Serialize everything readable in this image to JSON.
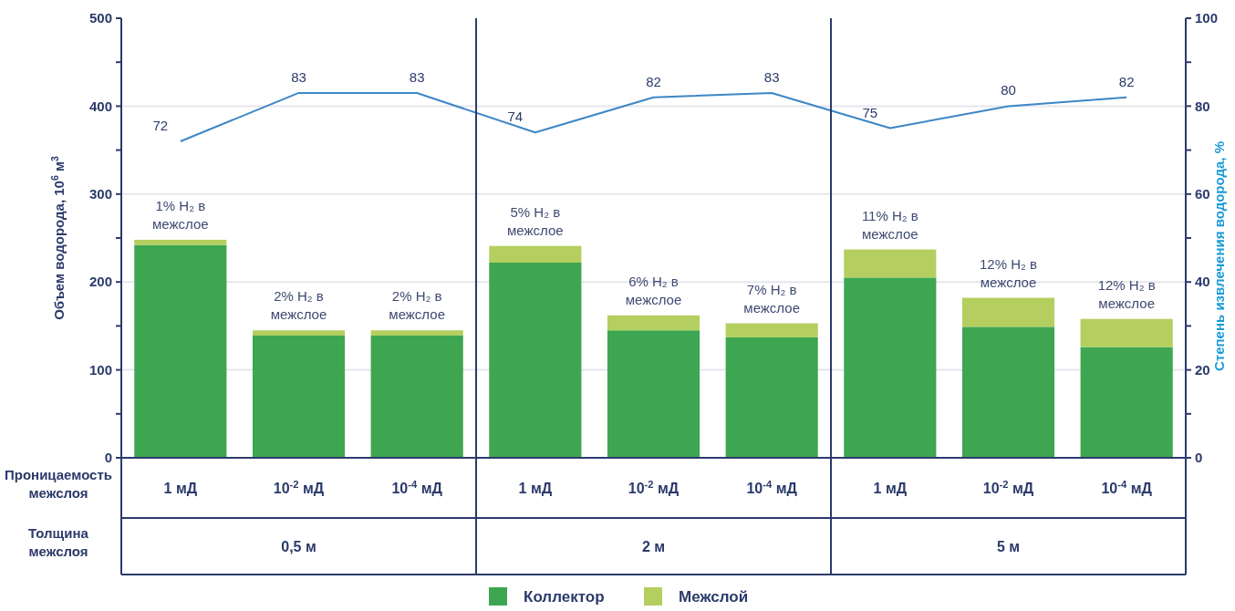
{
  "chart_data": {
    "type": "bar",
    "stacked": true,
    "categories": [
      "1 мД",
      "10$^{-2}$ мД",
      "10$^{-4}$ мД",
      "1 мД",
      "10$^{-2}$ мД",
      "10$^{-4}$ мД",
      "1 мД",
      "10$^{-2}$ мД",
      "10$^{-4}$ мД"
    ],
    "series": [
      {
        "name": "Коллектор",
        "color": "#3ea651",
        "values": [
          242,
          139,
          139,
          222,
          145,
          137,
          205,
          149,
          126
        ]
      },
      {
        "name": "Межслой",
        "color": "#b4cf5f",
        "values": [
          6,
          6,
          6,
          19,
          17,
          16,
          32,
          33,
          32
        ]
      },
      {
        "type": "line",
        "axis": "y2",
        "color": "#3d86c6",
        "data_labels": true,
        "values": [
          72,
          83,
          83,
          74,
          82,
          83,
          75,
          80,
          82
        ]
      }
    ],
    "ylabel": "Объем водорода, 10$^{6}$ м$^{3}$",
    "y2label": "Степень извлечения водорода, %",
    "ylim": [
      0,
      500
    ],
    "yticks": [
      0,
      {
        "value": 50,
        "label": null
      },
      100,
      {
        "value": 150,
        "label": null
      },
      200,
      {
        "value": 250,
        "label": null
      },
      300,
      {
        "value": 350,
        "label": null
      },
      400,
      {
        "value": 450,
        "label": null
      },
      500
    ],
    "y2lim": [
      0,
      100
    ],
    "y2ticks": [
      0,
      {
        "value": 10,
        "label": null
      },
      20,
      {
        "value": 30,
        "label": null
      },
      40,
      {
        "value": 50,
        "label": null
      },
      60,
      {
        "value": 70,
        "label": null
      },
      80,
      {
        "value": 90,
        "label": null
      },
      100
    ],
    "grid": "y",
    "legend": "bottom",
    "annotations": [
      "1% H₂ в межслое",
      "2% H₂ в межслое",
      "2% H₂ в межслое",
      "5% H₂ в межслое",
      "6% H₂ в межслое",
      "7% H₂ в межслое",
      "11% H₂ в межслое",
      "12% H₂ в межслое",
      "12% H₂ в межслое",
      "Проницаемость межслоя",
      "Толщина межслоя",
      "0,5 м",
      "2 м",
      "5 м"
    ]
  }
}
